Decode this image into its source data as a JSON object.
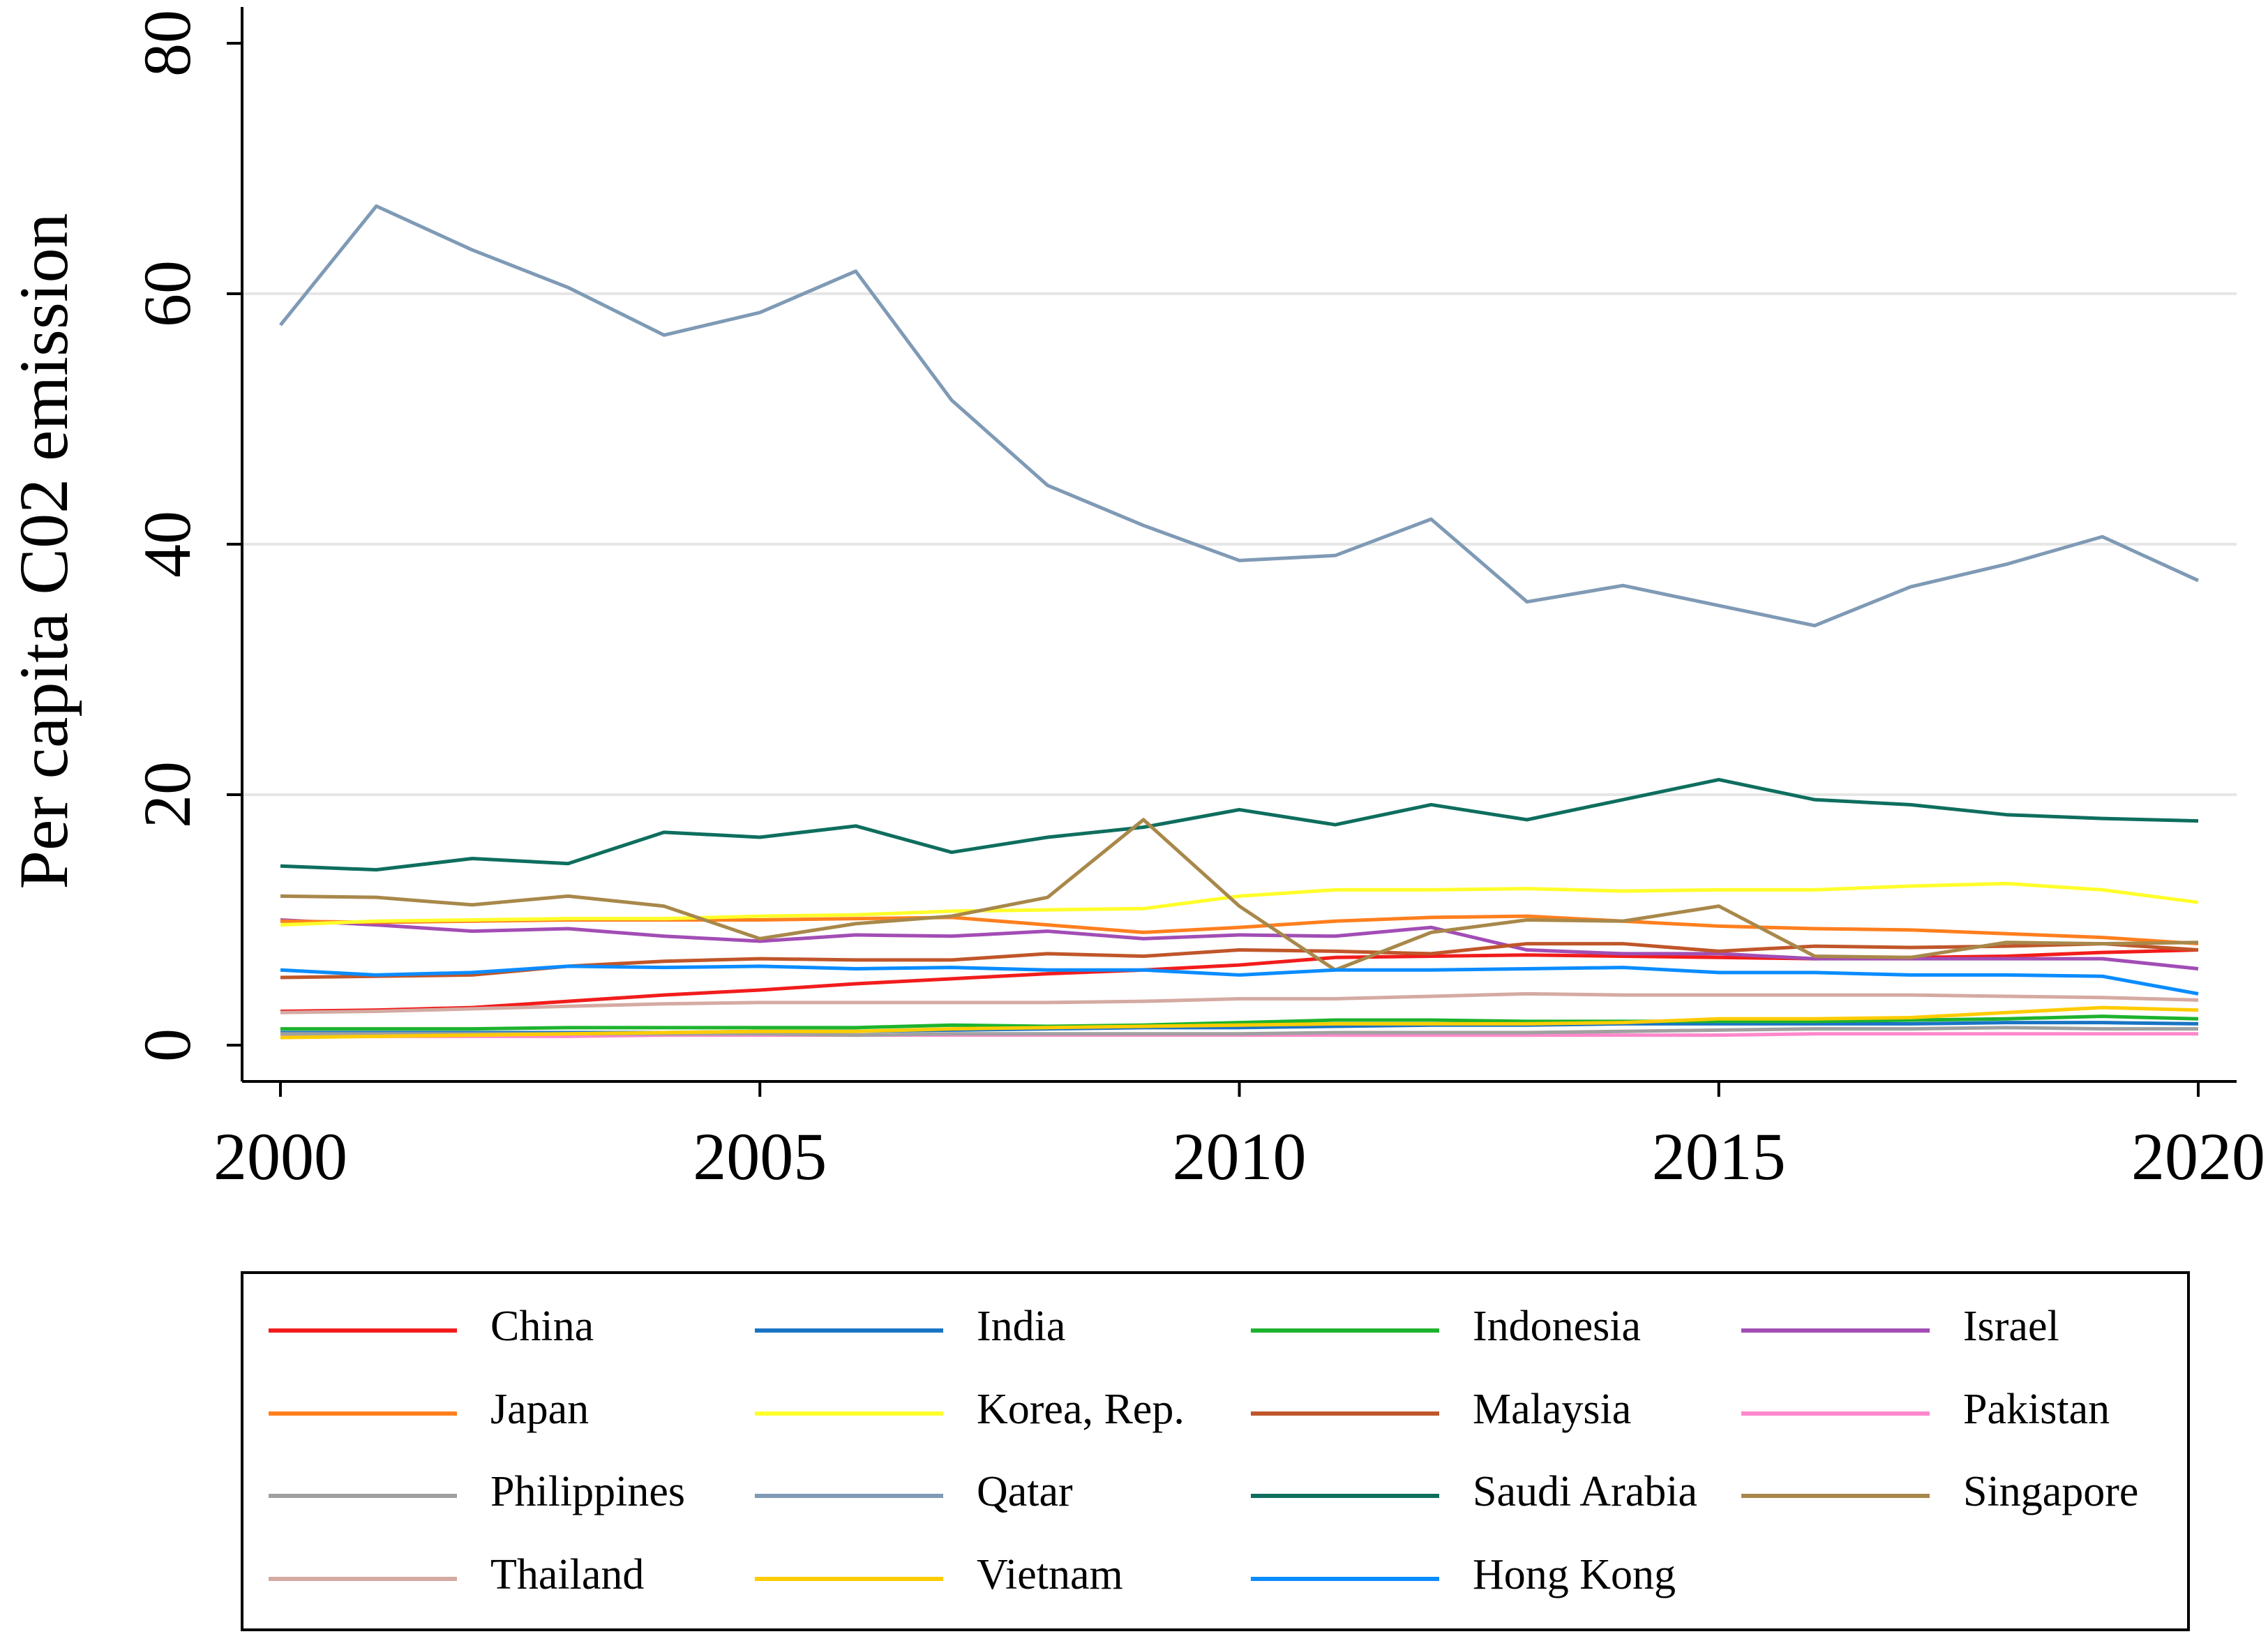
{
  "chart_data": {
    "type": "line",
    "y_label": "Per capita C02 emission",
    "x": [
      2000,
      2001,
      2002,
      2003,
      2004,
      2005,
      2006,
      2007,
      2008,
      2009,
      2010,
      2011,
      2012,
      2013,
      2014,
      2015,
      2016,
      2017,
      2018,
      2019,
      2020
    ],
    "xlim": [
      1999.6,
      2020.4
    ],
    "xticks": [
      2000,
      2005,
      2010,
      2015,
      2020
    ],
    "ylim": [
      -2.9,
      82.9
    ],
    "yticks": [
      0,
      20,
      40,
      60,
      80
    ],
    "grid": true,
    "series": [
      {
        "name": "China",
        "color": "#f21c1c",
        "values": [
          2.7,
          2.8,
          3,
          3.5,
          4,
          4.4,
          4.9,
          5.3,
          5.7,
          6,
          6.4,
          7,
          7.1,
          7.2,
          7.1,
          7,
          6.9,
          7,
          7.1,
          7.4,
          7.6
        ]
      },
      {
        "name": "India",
        "color": "#1a74c4",
        "values": [
          1,
          1,
          1,
          1,
          1,
          1.1,
          1.1,
          1.2,
          1.3,
          1.4,
          1.4,
          1.5,
          1.6,
          1.6,
          1.7,
          1.7,
          1.7,
          1.7,
          1.8,
          1.8,
          1.7
        ]
      },
      {
        "name": "Indonesia",
        "color": "#1db32e",
        "values": [
          1.3,
          1.3,
          1.3,
          1.4,
          1.4,
          1.4,
          1.4,
          1.6,
          1.5,
          1.6,
          1.8,
          2,
          2,
          1.9,
          1.9,
          1.9,
          1.9,
          2,
          2.1,
          2.3,
          2.1
        ]
      },
      {
        "name": "Israel",
        "color": "#a24db5",
        "values": [
          10,
          9.6,
          9.1,
          9.3,
          8.7,
          8.3,
          8.8,
          8.7,
          9.1,
          8.5,
          8.8,
          8.7,
          9.4,
          7.6,
          7.3,
          7.3,
          6.9,
          6.9,
          6.9,
          6.9,
          6.1
        ]
      },
      {
        "name": "Japan",
        "color": "#ff7f1e",
        "values": [
          9.9,
          9.8,
          9.9,
          10,
          10,
          10,
          10.1,
          10.2,
          9.6,
          9,
          9.4,
          9.9,
          10.2,
          10.3,
          9.9,
          9.5,
          9.3,
          9.2,
          8.9,
          8.6,
          8.1
        ]
      },
      {
        "name": "Korea, Rep.",
        "color": "#ffff2a",
        "values": [
          9.6,
          9.9,
          10,
          10.1,
          10.1,
          10.3,
          10.4,
          10.7,
          10.8,
          10.9,
          11.9,
          12.4,
          12.4,
          12.5,
          12.3,
          12.4,
          12.4,
          12.7,
          12.9,
          12.4,
          11.4
        ]
      },
      {
        "name": "Malaysia",
        "color": "#c0562a",
        "values": [
          5.4,
          5.5,
          5.6,
          6.3,
          6.7,
          6.9,
          6.8,
          6.8,
          7.3,
          7.1,
          7.6,
          7.5,
          7.3,
          8.1,
          8.1,
          7.5,
          7.9,
          7.8,
          7.9,
          8.1,
          7.6
        ]
      },
      {
        "name": "Pakistan",
        "color": "#ff88cc",
        "values": [
          0.7,
          0.7,
          0.7,
          0.7,
          0.8,
          0.8,
          0.8,
          0.8,
          0.8,
          0.8,
          0.8,
          0.8,
          0.8,
          0.8,
          0.8,
          0.8,
          0.9,
          0.9,
          0.9,
          0.9,
          0.9
        ]
      },
      {
        "name": "Philippines",
        "color": "#a0a0a0",
        "values": [
          0.9,
          0.9,
          0.9,
          0.9,
          0.9,
          0.9,
          0.8,
          0.9,
          0.9,
          0.9,
          0.9,
          1,
          1,
          1,
          1.1,
          1.2,
          1.3,
          1.3,
          1.4,
          1.3,
          1.3
        ]
      },
      {
        "name": "Qatar",
        "color": "#7f9ab5",
        "values": [
          57.5,
          67,
          63.5,
          60.5,
          56.7,
          58.5,
          61.8,
          51.5,
          44.7,
          41.5,
          38.7,
          39.1,
          42,
          35.4,
          36.7,
          35.1,
          33.5,
          36.6,
          38.4,
          40.6,
          37.1
        ]
      },
      {
        "name": "Saudi Arabia",
        "color": "#0e6e5e",
        "values": [
          14.3,
          14,
          14.9,
          14.5,
          17,
          16.6,
          17.5,
          15.4,
          16.6,
          17.4,
          18.8,
          17.6,
          19.2,
          18,
          19.6,
          21.2,
          19.6,
          19.2,
          18.4,
          18.1,
          17.9
        ]
      },
      {
        "name": "Singapore",
        "color": "#a8884a",
        "values": [
          11.9,
          11.8,
          11.2,
          11.9,
          11.1,
          8.5,
          9.7,
          10.3,
          11.8,
          18,
          11.1,
          6,
          9,
          10,
          9.9,
          11.1,
          7.1,
          7,
          8.2,
          8.1,
          8.2
        ]
      },
      {
        "name": "Thailand",
        "color": "#d4aaa2",
        "values": [
          2.6,
          2.7,
          2.9,
          3.1,
          3.3,
          3.4,
          3.4,
          3.4,
          3.4,
          3.5,
          3.7,
          3.7,
          3.9,
          4.1,
          4,
          4,
          4,
          4,
          3.9,
          3.8,
          3.6
        ]
      },
      {
        "name": "Vietnam",
        "color": "#ffcc00",
        "values": [
          0.6,
          0.7,
          0.8,
          0.9,
          1,
          1.1,
          1.1,
          1.3,
          1.4,
          1.5,
          1.6,
          1.7,
          1.7,
          1.7,
          1.8,
          2.1,
          2.1,
          2.2,
          2.6,
          3,
          2.8
        ]
      },
      {
        "name": "Hong Kong",
        "color": "#0a8cff",
        "values": [
          6,
          5.6,
          5.8,
          6.3,
          6.2,
          6.3,
          6.1,
          6.2,
          6,
          6,
          5.6,
          6,
          6,
          6.1,
          6.2,
          5.8,
          5.8,
          5.6,
          5.6,
          5.5,
          4.1
        ]
      }
    ]
  }
}
